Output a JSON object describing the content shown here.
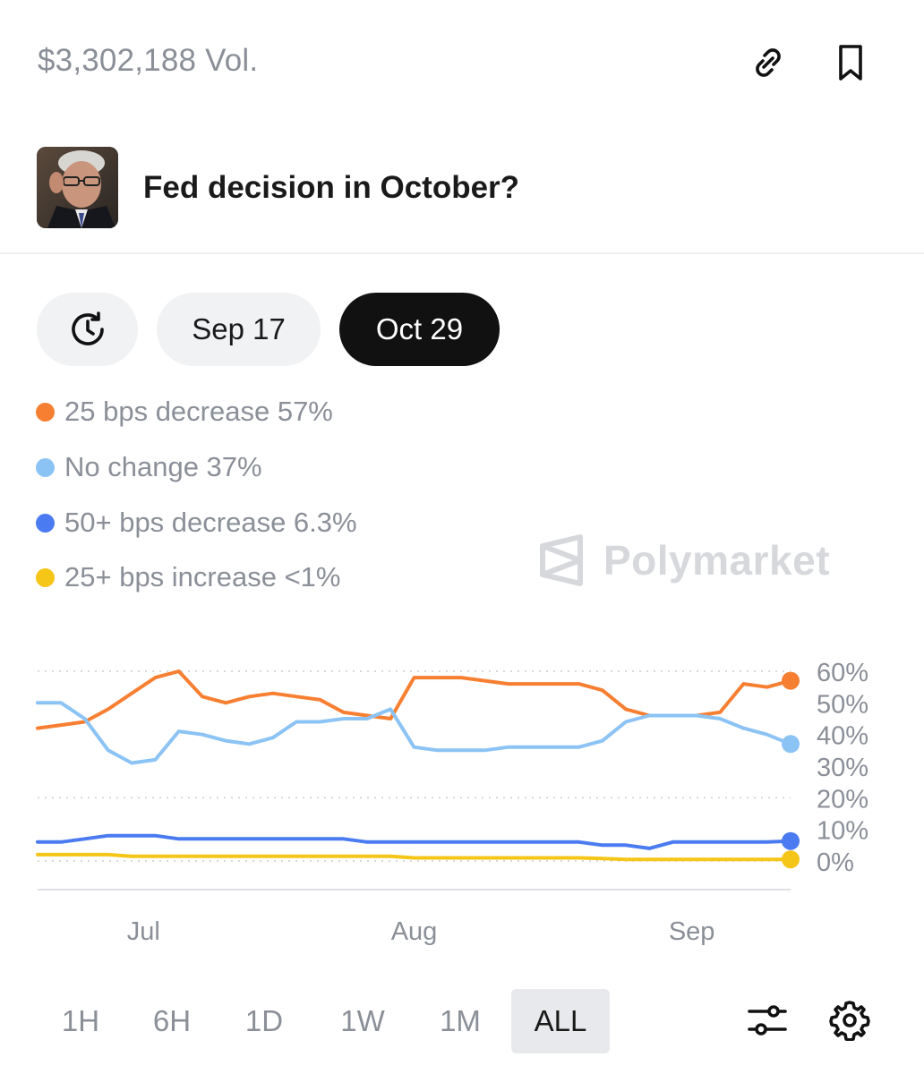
{
  "header": {
    "volume": "$3,302,188 Vol.",
    "link_icon": "link-icon",
    "bookmark_icon": "bookmark-icon"
  },
  "market": {
    "title": "Fed decision in October?",
    "avatar_icon": "market-avatar"
  },
  "date_tabs": [
    {
      "label": "",
      "icon": "history-clock-icon"
    },
    {
      "label": "Sep 17"
    },
    {
      "label": "Oct 29",
      "selected": true
    }
  ],
  "legend": [
    {
      "label": "25 bps decrease 57%",
      "color": "#f77f32"
    },
    {
      "label": "No change 37%",
      "color": "#8cc3f5"
    },
    {
      "label": "50+ bps decrease 6.3%",
      "color": "#4a7bf0"
    },
    {
      "label": "25+ bps increase <1%",
      "color": "#f5c518"
    }
  ],
  "watermark": {
    "text": "Polymarket",
    "icon": "polymarket-logo-icon"
  },
  "chart_data": {
    "type": "line",
    "x_ticks": [
      "Jul",
      "Aug",
      "Sep"
    ],
    "y_ticks": [
      "60%",
      "50%",
      "40%",
      "30%",
      "20%",
      "10%",
      "0%"
    ],
    "y_tick_values": [
      60,
      50,
      40,
      30,
      20,
      10,
      0
    ],
    "ylim": [
      0,
      60
    ],
    "grid": true,
    "x": [
      "Jun 18",
      "Jun 20",
      "Jun 23",
      "Jun 26",
      "Jun 29",
      "Jul 2",
      "Jul 5",
      "Jul 8",
      "Jul 11",
      "Jul 14",
      "Jul 17",
      "Jul 20",
      "Jul 23",
      "Jul 26",
      "Jul 29",
      "Jul 31",
      "Aug 1",
      "Aug 3",
      "Aug 6",
      "Aug 9",
      "Aug 12",
      "Aug 15",
      "Aug 18",
      "Aug 21",
      "Aug 24",
      "Aug 27",
      "Aug 30",
      "Sep 2",
      "Sep 5",
      "Sep 8",
      "Sep 9",
      "Sep 11",
      "Sep 13"
    ],
    "series": [
      {
        "name": "25 bps decrease",
        "color": "#f77f32",
        "values": [
          42,
          43,
          44,
          48,
          53,
          58,
          60,
          52,
          50,
          52,
          53,
          52,
          51,
          47,
          46,
          45,
          58,
          58,
          58,
          57,
          56,
          56,
          56,
          56,
          54,
          48,
          46,
          46,
          46,
          47,
          56,
          55,
          57
        ]
      },
      {
        "name": "No change",
        "color": "#8cc3f5",
        "values": [
          50,
          50,
          45,
          35,
          31,
          32,
          41,
          40,
          38,
          37,
          39,
          44,
          44,
          45,
          45,
          48,
          36,
          35,
          35,
          35,
          36,
          36,
          36,
          36,
          38,
          44,
          46,
          46,
          46,
          45,
          42,
          40,
          37
        ]
      },
      {
        "name": "50+ bps decrease",
        "color": "#4a7bf0",
        "values": [
          6,
          6,
          7,
          8,
          8,
          8,
          7,
          7,
          7,
          7,
          7,
          7,
          7,
          7,
          6,
          6,
          6,
          6,
          6,
          6,
          6,
          6,
          6,
          6,
          5,
          5,
          4,
          6,
          6,
          6,
          6,
          6,
          6.3
        ]
      },
      {
        "name": "25+ bps increase",
        "color": "#f5c518",
        "values": [
          2,
          2,
          2,
          2,
          1.5,
          1.5,
          1.5,
          1.5,
          1.5,
          1.5,
          1.5,
          1.5,
          1.5,
          1.5,
          1.5,
          1.5,
          1,
          1,
          1,
          1,
          1,
          1,
          1,
          1,
          0.8,
          0.5,
          0.5,
          0.5,
          0.5,
          0.5,
          0.5,
          0.5,
          0.5
        ]
      }
    ]
  },
  "range_tabs": [
    {
      "label": "1H"
    },
    {
      "label": "6H"
    },
    {
      "label": "1D"
    },
    {
      "label": "1W"
    },
    {
      "label": "1M"
    },
    {
      "label": "ALL",
      "selected": true
    }
  ],
  "controls": {
    "sliders_icon": "sliders-icon",
    "settings_icon": "gear-icon"
  }
}
